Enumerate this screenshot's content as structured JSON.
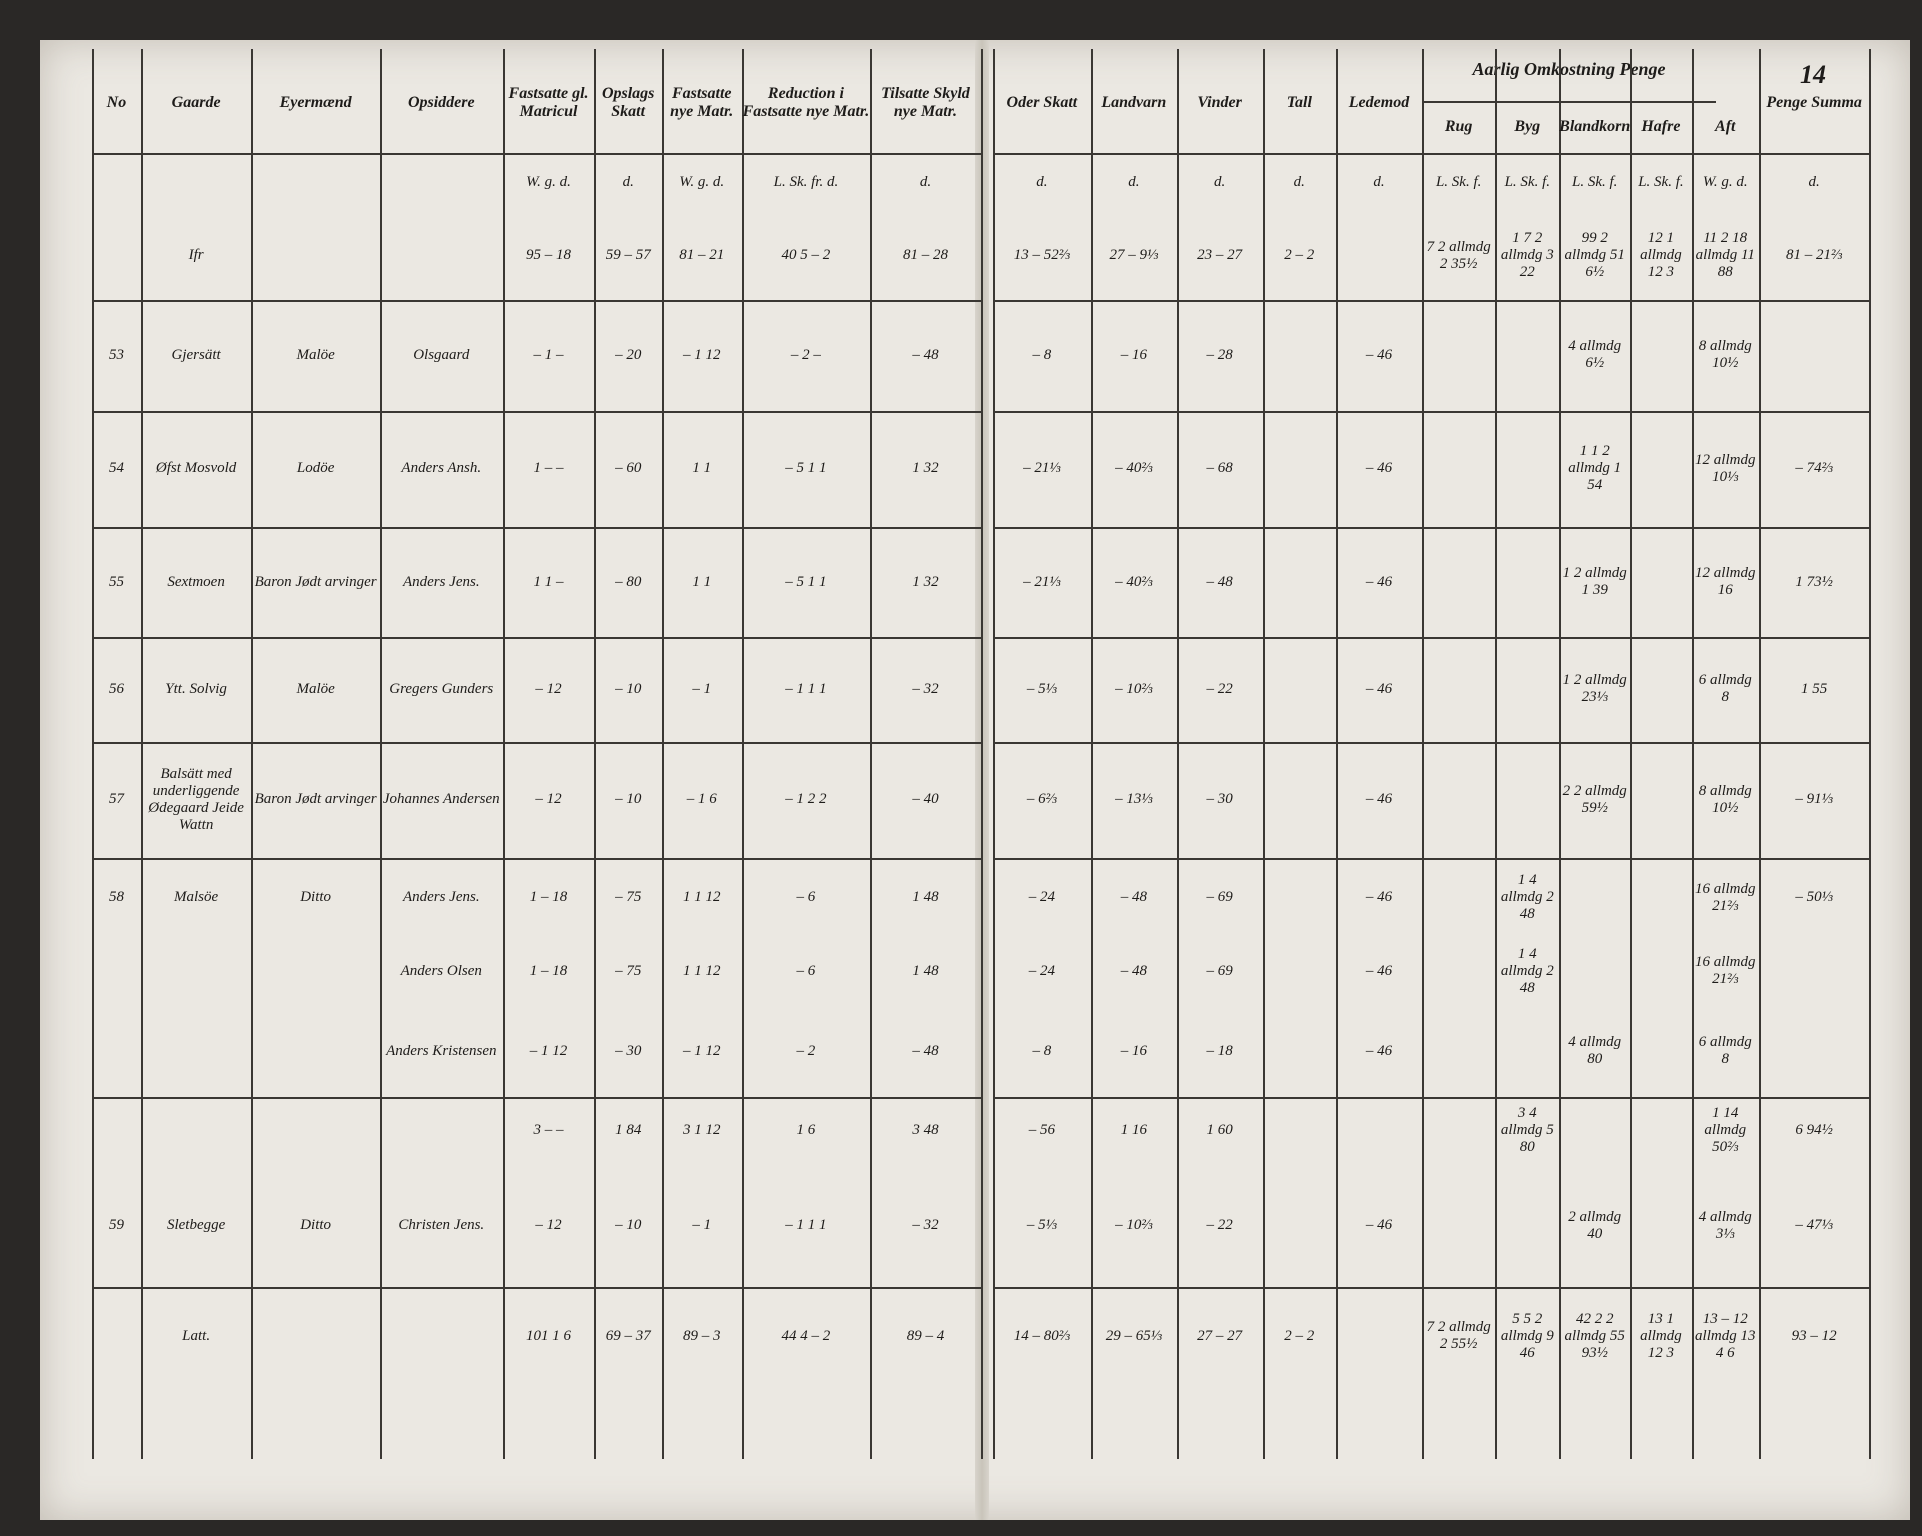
{
  "page_number": "14",
  "table": {
    "group_header": "Aarlig Omkostning Penge",
    "header": [
      "No",
      "Gaarde",
      "Eyermænd",
      "Opsiddere",
      "Fastsatte gl. Matricul",
      "Opslags Skatt",
      "Fastsatte nye Matr.",
      "Reduction i Fastsatte nye Matr.",
      "Tilsatte Skyld nye Matr.",
      "Oder Skatt",
      "Landvarn",
      "Vinder",
      "Tall",
      "Ledemod",
      "Rug",
      "Byg",
      "Blandkorn",
      "Hafre",
      "Aft",
      "Penge Summa"
    ],
    "rows": [
      [
        null,
        null,
        null,
        null,
        "W. g. d.",
        "d.",
        "W. g. d.",
        "L. Sk. fr. d.",
        "d.",
        "d.",
        "d.",
        "d.",
        "d.",
        "d.",
        "L. Sk. f.",
        "L. Sk. f.",
        "L. Sk. f.",
        "L. Sk. f.",
        "W. g. d.",
        "d."
      ],
      [
        null,
        "Ifr",
        null,
        null,
        "95 – 18",
        "59 – 57",
        "81 – 21",
        "40 5 – 2",
        "81 – 28",
        "13 – 52⅔",
        "27 – 9⅓",
        "23 – 27",
        "2 – 2",
        null,
        "7 2 allmdg 2 35½",
        "1 7 2 allmdg 3 22",
        "99 2 allmdg 51 6½",
        "12 1 allmdg 12 3",
        "11 2 18 allmdg 11 88",
        "81 – 21⅔"
      ],
      [
        "53",
        "Gjersätt",
        "Malöe",
        "Olsgaard",
        "– 1 –",
        "– 20",
        "– 1 12",
        "– 2 –",
        "– 48",
        "– 8",
        "– 16",
        "– 28",
        null,
        "– 46",
        null,
        null,
        "4 allmdg 6½",
        null,
        "8 allmdg 10½",
        null
      ],
      [
        "54",
        "Øfst Mosvold",
        "Lodöe",
        "Anders Ansh.",
        "1 – –",
        "– 60",
        "1 1",
        "– 5 1 1",
        "1 32",
        "– 21⅓",
        "– 40⅔",
        "– 68",
        null,
        "– 46",
        null,
        null,
        "1 1 2 allmdg 1 54",
        null,
        "12 allmdg 10⅓",
        "– 74⅔"
      ],
      [
        "55",
        "Sextmoen",
        "Baron Jødt arvinger",
        "Anders Jens.",
        "1 1 –",
        "– 80",
        "1 1",
        "– 5 1 1",
        "1 32",
        "– 21⅓",
        "– 40⅔",
        "– 48",
        null,
        "– 46",
        null,
        null,
        "1 2 allmdg 1 39",
        null,
        "12 allmdg 16",
        "1 73½"
      ],
      [
        "56",
        "Ytt. Solvig",
        "Malöe",
        "Gregers Gunders",
        "– 12",
        "– 10",
        "– 1",
        "– 1 1 1",
        "– 32",
        "– 5⅓",
        "– 10⅔",
        "– 22",
        null,
        "– 46",
        null,
        null,
        "1 2 allmdg 23⅓",
        null,
        "6 allmdg 8",
        "1 55"
      ],
      [
        "57",
        "Balsätt med underliggende Ødegaard Jeide Wattn",
        "Baron Jødt arvinger",
        "Johannes Andersen",
        "– 12",
        "– 10",
        "– 1 6",
        "– 1 2 2",
        "– 40",
        "– 6⅔",
        "– 13⅓",
        "– 30",
        null,
        "– 46",
        null,
        null,
        "2 2 allmdg 59½",
        null,
        "8 allmdg 10½",
        "– 91⅓"
      ],
      [
        "58",
        "Malsöe",
        "Ditto",
        "Anders Jens.",
        "1 – 18",
        "– 75",
        "1 1 12",
        "– 6",
        "1 48",
        "– 24",
        "– 48",
        "– 69",
        null,
        "– 46",
        null,
        "1 4 allmdg 2 48",
        null,
        null,
        "16 allmdg 21⅔",
        "– 50⅓"
      ],
      [
        null,
        null,
        null,
        "Anders Olsen",
        "1 – 18",
        "– 75",
        "1 1 12",
        "– 6",
        "1 48",
        "– 24",
        "– 48",
        "– 69",
        null,
        "– 46",
        null,
        "1 4 allmdg 2 48",
        null,
        null,
        "16 allmdg 21⅔",
        null
      ],
      [
        null,
        null,
        null,
        "Anders Kristensen",
        "– 1 12",
        "– 30",
        "– 1 12",
        "– 2",
        "– 48",
        "– 8",
        "– 16",
        "– 18",
        null,
        "– 46",
        null,
        null,
        "4 allmdg 80",
        null,
        "6 allmdg 8",
        null
      ],
      [
        null,
        null,
        null,
        null,
        "3 – –",
        "1 84",
        "3 1 12",
        "1 6",
        "3 48",
        "– 56",
        "1 16",
        "1 60",
        null,
        null,
        null,
        "3 4 allmdg 5 80",
        null,
        null,
        "1 14 allmdg 50⅔",
        "6 94½"
      ],
      [
        "59",
        "Sletbegge",
        "Ditto",
        "Christen Jens.",
        "– 12",
        "– 10",
        "– 1",
        "– 1 1 1",
        "– 32",
        "– 5⅓",
        "– 10⅔",
        "– 22",
        null,
        "– 46",
        null,
        null,
        "2 allmdg 40",
        null,
        "4 allmdg 3⅓",
        "– 47⅓"
      ],
      [
        null,
        "Latt.",
        null,
        null,
        "101 1 6",
        "69 – 37",
        "89 – 3",
        "44 4 – 2",
        "89 – 4",
        "14 – 80⅔",
        "29 – 65⅓",
        "27 – 27",
        "2 – 2",
        null,
        "7 2 allmdg 2 55½",
        "5 5 2 allmdg 9 46",
        "42 2 2 allmdg 55 93½",
        "13 1 allmdg 12 3",
        "13 – 12 allmdg 13 4 6",
        "93 – 12"
      ]
    ]
  }
}
